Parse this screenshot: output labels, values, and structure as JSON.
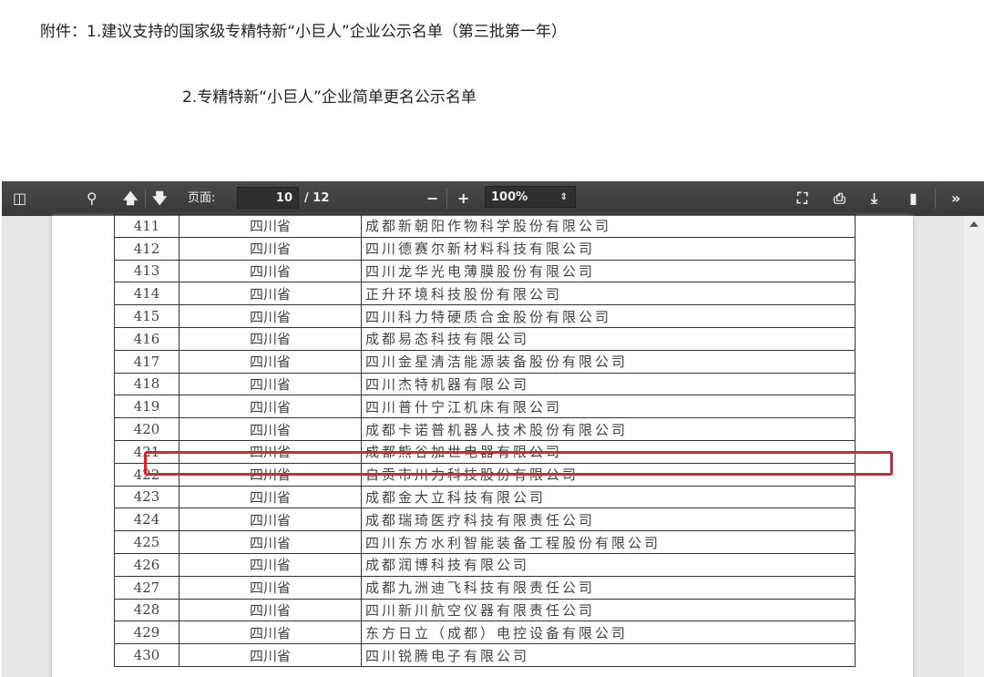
{
  "heading": {
    "line1": "附件：1.建议支持的国家级专精特新“小巨人”企业公示名单（第三批第一年）",
    "line2": "2.专精特新“小巨人”企业简单更名公示名单"
  },
  "toolbar": {
    "page_label": "页面:",
    "page_current": "10",
    "page_total": "/ 12",
    "zoom": "100%",
    "icons": [
      "sidebar-toggle-icon",
      "search-icon",
      "arrow-up-icon",
      "arrow-down-icon",
      "zoom-out-icon",
      "zoom-in-icon",
      "fullscreen-icon",
      "print-icon",
      "download-icon",
      "bookmark-icon",
      "more-tools-icon"
    ]
  },
  "highlight_color": "#d9262c",
  "rows": [
    {
      "no": "411",
      "prov": "四川省",
      "name": "成都新朝阳作物科学股份有限公司"
    },
    {
      "no": "412",
      "prov": "四川省",
      "name": "四川德赛尔新材料科技有限公司"
    },
    {
      "no": "413",
      "prov": "四川省",
      "name": "四川龙华光电薄膜股份有限公司"
    },
    {
      "no": "414",
      "prov": "四川省",
      "name": "正升环境科技股份有限公司"
    },
    {
      "no": "415",
      "prov": "四川省",
      "name": "四川科力特硬质合金股份有限公司"
    },
    {
      "no": "416",
      "prov": "四川省",
      "name": "成都易态科技有限公司"
    },
    {
      "no": "417",
      "prov": "四川省",
      "name": "四川金星清洁能源装备股份有限公司"
    },
    {
      "no": "418",
      "prov": "四川省",
      "name": "四川杰特机器有限公司"
    },
    {
      "no": "419",
      "prov": "四川省",
      "name": "四川普什宁江机床有限公司"
    },
    {
      "no": "420",
      "prov": "四川省",
      "name": "成都卡诺普机器人技术股份有限公司"
    },
    {
      "no": "421",
      "prov": "四川省",
      "name": "成都熊谷加世电器有限公司"
    },
    {
      "no": "422",
      "prov": "四川省",
      "name": "自贡市川力科技股份有限公司"
    },
    {
      "no": "423",
      "prov": "四川省",
      "name": "成都金大立科技有限公司"
    },
    {
      "no": "424",
      "prov": "四川省",
      "name": "成都瑞琦医疗科技有限责任公司"
    },
    {
      "no": "425",
      "prov": "四川省",
      "name": "四川东方水利智能装备工程股份有限公司"
    },
    {
      "no": "426",
      "prov": "四川省",
      "name": "成都润博科技有限公司"
    },
    {
      "no": "427",
      "prov": "四川省",
      "name": "成都九洲迪飞科技有限责任公司"
    },
    {
      "no": "428",
      "prov": "四川省",
      "name": "四川新川航空仪器有限责任公司"
    },
    {
      "no": "429",
      "prov": "四川省",
      "name": "东方日立（成都）电控设备有限公司"
    },
    {
      "no": "430",
      "prov": "四川省",
      "name": "四川锐腾电子有限公司"
    }
  ]
}
